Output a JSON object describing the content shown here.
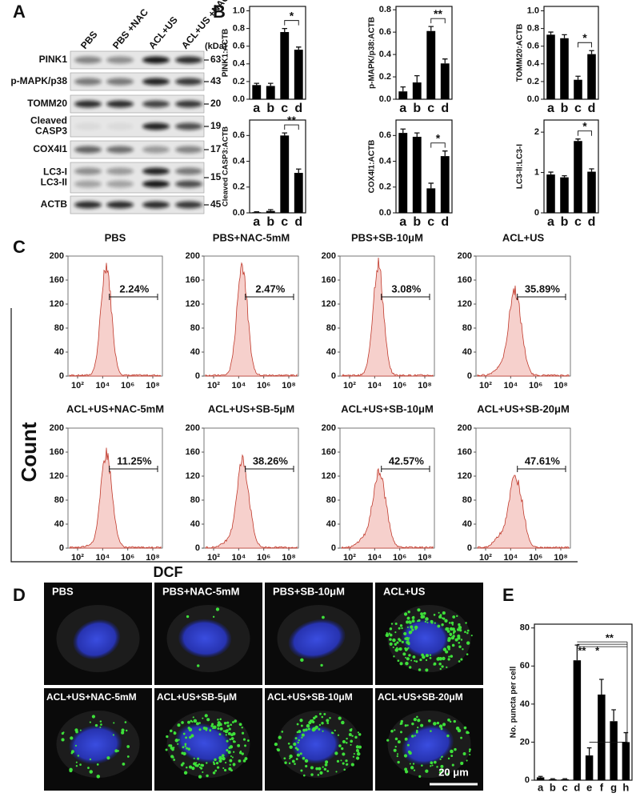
{
  "panel_labels": [
    "A",
    "B",
    "C",
    "D",
    "E"
  ],
  "blot": {
    "lanes": [
      "PBS",
      "PBS +NAC",
      "ACL+US",
      "ACL+US +NAC"
    ],
    "unit": "(kDa)",
    "rows": [
      {
        "labels": [
          "PINK1"
        ],
        "kda": "63"
      },
      {
        "labels": [
          "p-MAPK/p38"
        ],
        "kda": "43"
      },
      {
        "labels": [
          "TOMM20"
        ],
        "kda": "20"
      },
      {
        "labels": [
          "Cleaved",
          "CASP3"
        ],
        "kda": "19"
      },
      {
        "labels": [
          "COX4I1"
        ],
        "kda": "17"
      },
      {
        "labels": [
          "LC3-I",
          "LC3-II"
        ],
        "kda": "15"
      },
      {
        "labels": [
          "ACTB"
        ],
        "kda": "45"
      }
    ]
  },
  "chart_data": [
    {
      "type": "bar",
      "ylabel": "PINK1:ACTB",
      "categories": [
        "a",
        "b",
        "c",
        "d"
      ],
      "values": [
        0.16,
        0.15,
        0.76,
        0.56
      ],
      "errors": [
        0.02,
        0.03,
        0.04,
        0.03
      ],
      "color": "#000000",
      "ylim": [
        0,
        1.05
      ],
      "yticks": [
        {
          "value": 0,
          "label": "0.0"
        },
        0.2,
        0.4,
        0.6,
        0.8,
        {
          "value": 1,
          "label": "1.0"
        }
      ],
      "annotations": [
        "*"
      ]
    },
    {
      "type": "bar",
      "ylabel": "p-MAPK/p38:ACTB",
      "categories": [
        "a",
        "b",
        "c",
        "d"
      ],
      "values": [
        0.07,
        0.15,
        0.61,
        0.32
      ],
      "errors": [
        0.04,
        0.06,
        0.04,
        0.04
      ],
      "color": "#000000",
      "ylim": [
        0,
        0.83
      ],
      "yticks": [
        {
          "value": 0,
          "label": "0.0"
        },
        0.2,
        0.4,
        0.6,
        0.8
      ],
      "annotations": [
        "**"
      ]
    },
    {
      "type": "bar",
      "ylabel": "TOMM20:ACTB",
      "categories": [
        "a",
        "b",
        "c",
        "d"
      ],
      "values": [
        0.73,
        0.69,
        0.22,
        0.51
      ],
      "errors": [
        0.03,
        0.04,
        0.04,
        0.04
      ],
      "color": "#000000",
      "ylim": [
        0,
        1.05
      ],
      "yticks": [
        {
          "value": 0,
          "label": "0.0"
        },
        0.2,
        0.4,
        0.6,
        0.8,
        {
          "value": 1,
          "label": "1.0"
        }
      ],
      "annotations": [
        "*"
      ]
    },
    {
      "type": "bar",
      "ylabel": "Cleaved CASP3:ACTB",
      "categories": [
        "a",
        "b",
        "c",
        "d"
      ],
      "values": [
        0.005,
        0.015,
        0.6,
        0.31
      ],
      "errors": [
        0.003,
        0.01,
        0.02,
        0.03
      ],
      "color": "#000000",
      "ylim": [
        0,
        0.72
      ],
      "yticks": [
        {
          "value": 0,
          "label": "0.0"
        },
        0.2,
        0.4,
        0.6
      ],
      "annotations": [
        "**"
      ]
    },
    {
      "type": "bar",
      "ylabel": "COX4I1:ACTB",
      "categories": [
        "a",
        "b",
        "c",
        "d"
      ],
      "values": [
        0.62,
        0.59,
        0.19,
        0.44
      ],
      "errors": [
        0.03,
        0.03,
        0.04,
        0.04
      ],
      "color": "#000000",
      "ylim": [
        0,
        0.72
      ],
      "yticks": [
        {
          "value": 0,
          "label": "0.0"
        },
        0.2,
        0.4,
        0.6
      ],
      "annotations": [
        "*"
      ]
    },
    {
      "type": "bar",
      "ylabel": "LC3-II:LC3-I",
      "categories": [
        "a",
        "b",
        "c",
        "d"
      ],
      "values": [
        0.95,
        0.88,
        1.78,
        1.02
      ],
      "errors": [
        0.06,
        0.04,
        0.05,
        0.07
      ],
      "color": "#000000",
      "ylim": [
        0,
        2.3
      ],
      "yticks": [
        0,
        1,
        2
      ],
      "annotations": [
        "*"
      ]
    },
    {
      "type": "bar",
      "ylabel": "No. puncta per cell",
      "categories": [
        "a",
        "b",
        "c",
        "d",
        "e",
        "f",
        "g",
        "h"
      ],
      "values": [
        1.5,
        0.5,
        0.5,
        63,
        13,
        45,
        31,
        20
      ],
      "errors": [
        0.5,
        0.3,
        0.3,
        8,
        4,
        8,
        6,
        5
      ],
      "color": "#000000",
      "ylim": [
        0,
        82
      ],
      "yticks": [
        0,
        20,
        40,
        60,
        80
      ],
      "annotations": [
        "**",
        "*",
        "**"
      ]
    }
  ],
  "flow": {
    "ylabel": "Count",
    "xlabel": "DCF",
    "yticks": [
      "0",
      "40",
      "80",
      "120",
      "160",
      "200"
    ],
    "xticks": [
      "10²",
      "10⁴",
      "10⁶",
      "10⁸"
    ],
    "panels": [
      {
        "title": "PBS",
        "percent": "2.24%"
      },
      {
        "title": "PBS+NAC-5mM",
        "percent": "2.47%"
      },
      {
        "title": "PBS+SB-10μM",
        "percent": "3.08%"
      },
      {
        "title": "ACL+US",
        "percent": "35.89%"
      },
      {
        "title": "ACL+US+NAC-5mM",
        "percent": "11.25%"
      },
      {
        "title": "ACL+US+SB-5μM",
        "percent": "38.26%"
      },
      {
        "title": "ACL+US+SB-10μM",
        "percent": "42.57%"
      },
      {
        "title": "ACL+US+SB-20μM",
        "percent": "47.61%"
      }
    ]
  },
  "microscopy": {
    "titles": [
      "PBS",
      "PBS+NAC-5mM",
      "PBS+SB-10μM",
      "ACL+US",
      "ACL+US+NAC-5mM",
      "ACL+US+SB-5μM",
      "ACL+US+SB-10μM",
      "ACL+US+SB-20μM"
    ],
    "scale_bar": "20 μm"
  }
}
